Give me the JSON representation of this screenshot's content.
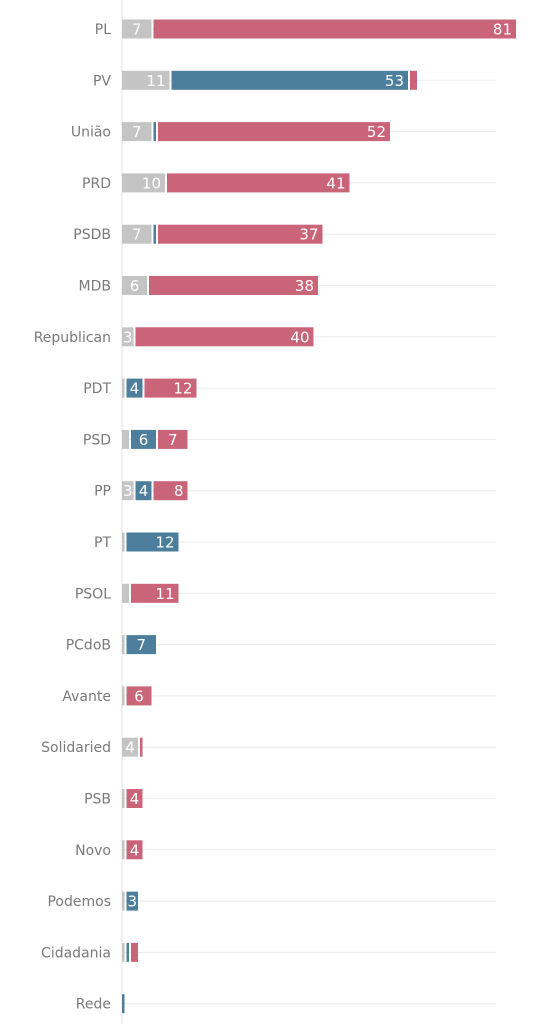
{
  "chart_data": {
    "type": "bar",
    "orientation": "horizontal",
    "stacked": true,
    "categories": [
      "PL",
      "PV",
      "União",
      "PRD",
      "PSDB",
      "MDB",
      "Republican",
      "PDT",
      "PSD",
      "PP",
      "PT",
      "PSOL",
      "PCdoB",
      "Avante",
      "Solidaried",
      "PSB",
      "Novo",
      "Podemos",
      "Cidadania",
      "Rede"
    ],
    "series": [
      {
        "color": "#c4c4c4",
        "values": [
          7,
          11,
          7,
          10,
          7,
          6,
          3,
          1,
          2,
          3,
          1,
          2,
          1,
          1,
          4,
          1,
          1,
          1,
          1,
          0
        ]
      },
      {
        "color": "#4d7f9c",
        "values": [
          0,
          53,
          1,
          0,
          1,
          0,
          0,
          4,
          6,
          4,
          12,
          0,
          7,
          0,
          0,
          0,
          0,
          3,
          1,
          1
        ]
      },
      {
        "color": "#ca6478",
        "values": [
          81,
          2,
          52,
          41,
          37,
          38,
          40,
          12,
          7,
          8,
          0,
          11,
          0,
          6,
          1,
          4,
          4,
          0,
          2,
          0
        ]
      }
    ],
    "data_labels": [
      [
        "7",
        "",
        "81"
      ],
      [
        "11",
        "53",
        ""
      ],
      [
        "7",
        "",
        "52"
      ],
      [
        "10",
        "",
        "41"
      ],
      [
        "7",
        "",
        "37"
      ],
      [
        "6",
        "",
        "38"
      ],
      [
        "3",
        "",
        "40"
      ],
      [
        "",
        "4",
        "12"
      ],
      [
        "",
        "6",
        "7"
      ],
      [
        "3",
        "4",
        "8"
      ],
      [
        "",
        "12",
        ""
      ],
      [
        "",
        "",
        "11"
      ],
      [
        "",
        "7",
        ""
      ],
      [
        "",
        "",
        "6"
      ],
      [
        "4",
        "",
        ""
      ],
      [
        "",
        "",
        "4"
      ],
      [
        "",
        "",
        "4"
      ],
      [
        "",
        "3",
        ""
      ],
      [
        "",
        "",
        ""
      ],
      [
        "",
        "",
        ""
      ]
    ],
    "xlim": [
      0,
      90
    ],
    "grid": true
  }
}
